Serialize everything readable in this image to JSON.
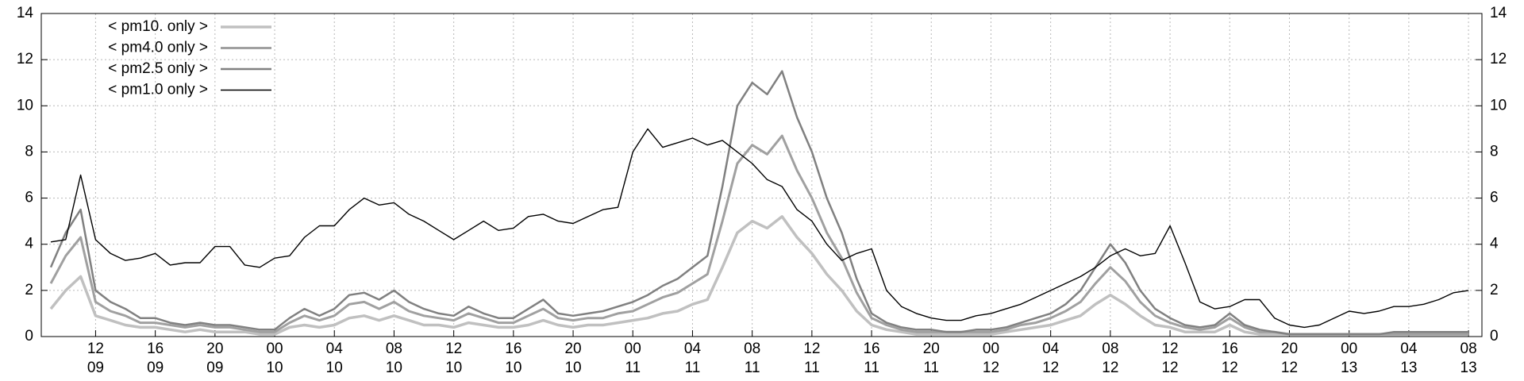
{
  "chart_data": {
    "type": "line",
    "x": [
      9,
      10,
      11,
      12,
      13,
      14,
      15,
      16,
      17,
      18,
      19,
      20,
      21,
      22,
      23,
      24,
      25,
      26,
      27,
      28,
      29,
      30,
      31,
      32,
      33,
      34,
      35,
      36,
      37,
      38,
      39,
      40,
      41,
      42,
      43,
      44,
      45,
      46,
      47,
      48,
      49,
      50,
      51,
      52,
      53,
      54,
      55,
      56,
      57,
      58,
      59,
      60,
      61,
      62,
      63,
      64,
      65,
      66,
      67,
      68,
      69,
      70,
      71,
      72,
      73,
      74,
      75,
      76,
      77,
      78,
      79,
      80,
      81,
      82,
      83,
      84,
      85,
      86,
      87,
      88,
      89,
      90,
      91,
      92,
      93,
      94,
      95,
      96,
      97,
      98,
      99,
      100,
      101,
      102,
      103,
      104
    ],
    "series": [
      {
        "name": "< pm10. only >",
        "color": "#c0c0c0",
        "width": 3.5,
        "values": [
          1.2,
          2.0,
          2.6,
          0.9,
          0.7,
          0.5,
          0.4,
          0.4,
          0.3,
          0.2,
          0.3,
          0.2,
          0.2,
          0.2,
          0.1,
          0.1,
          0.4,
          0.5,
          0.4,
          0.5,
          0.8,
          0.9,
          0.7,
          0.9,
          0.7,
          0.5,
          0.5,
          0.4,
          0.6,
          0.5,
          0.4,
          0.4,
          0.5,
          0.7,
          0.5,
          0.4,
          0.5,
          0.5,
          0.6,
          0.7,
          0.8,
          1.0,
          1.1,
          1.4,
          1.6,
          3.0,
          4.5,
          5.0,
          4.7,
          5.2,
          4.3,
          3.6,
          2.7,
          2.0,
          1.1,
          0.5,
          0.3,
          0.2,
          0.1,
          0.1,
          0.1,
          0.1,
          0.1,
          0.1,
          0.2,
          0.3,
          0.4,
          0.5,
          0.7,
          0.9,
          1.4,
          1.8,
          1.4,
          0.9,
          0.5,
          0.4,
          0.2,
          0.2,
          0.2,
          0.5,
          0.2,
          0.1,
          0.1,
          0.1,
          0.1,
          0.1,
          0.1,
          0.1,
          0.1,
          0.1,
          0.1,
          0.1,
          0.1,
          0.1,
          0.1,
          0.1
        ]
      },
      {
        "name": "< pm4.0 only >",
        "color": "#a0a0a0",
        "width": 3,
        "values": [
          2.3,
          3.5,
          4.3,
          1.5,
          1.1,
          0.9,
          0.6,
          0.6,
          0.5,
          0.4,
          0.5,
          0.4,
          0.4,
          0.3,
          0.2,
          0.2,
          0.6,
          0.9,
          0.7,
          0.9,
          1.4,
          1.5,
          1.2,
          1.5,
          1.1,
          0.9,
          0.8,
          0.7,
          1.0,
          0.8,
          0.6,
          0.6,
          0.9,
          1.2,
          0.8,
          0.7,
          0.8,
          0.8,
          1.0,
          1.1,
          1.4,
          1.7,
          1.9,
          2.3,
          2.7,
          5.0,
          7.5,
          8.3,
          7.9,
          8.7,
          7.2,
          6.0,
          4.5,
          3.4,
          1.9,
          0.8,
          0.5,
          0.3,
          0.2,
          0.2,
          0.2,
          0.2,
          0.2,
          0.2,
          0.3,
          0.5,
          0.6,
          0.8,
          1.1,
          1.5,
          2.3,
          3.0,
          2.4,
          1.5,
          0.9,
          0.6,
          0.4,
          0.3,
          0.4,
          0.8,
          0.4,
          0.2,
          0.2,
          0.1,
          0.1,
          0.1,
          0.1,
          0.1,
          0.1,
          0.1,
          0.1,
          0.1,
          0.1,
          0.1,
          0.1,
          0.1
        ]
      },
      {
        "name": "< pm2.5 only >",
        "color": "#808080",
        "width": 2.5,
        "values": [
          3.0,
          4.5,
          5.5,
          2.0,
          1.5,
          1.2,
          0.8,
          0.8,
          0.6,
          0.5,
          0.6,
          0.5,
          0.5,
          0.4,
          0.3,
          0.3,
          0.8,
          1.2,
          0.9,
          1.2,
          1.8,
          1.9,
          1.6,
          2.0,
          1.5,
          1.2,
          1.0,
          0.9,
          1.3,
          1.0,
          0.8,
          0.8,
          1.2,
          1.6,
          1.0,
          0.9,
          1.0,
          1.1,
          1.3,
          1.5,
          1.8,
          2.2,
          2.5,
          3.0,
          3.5,
          6.5,
          10.0,
          11.0,
          10.5,
          11.5,
          9.5,
          8.0,
          6.0,
          4.5,
          2.5,
          1.0,
          0.6,
          0.4,
          0.3,
          0.3,
          0.2,
          0.2,
          0.3,
          0.3,
          0.4,
          0.6,
          0.8,
          1.0,
          1.4,
          2.0,
          3.0,
          4.0,
          3.2,
          2.0,
          1.2,
          0.8,
          0.5,
          0.4,
          0.5,
          1.0,
          0.5,
          0.3,
          0.2,
          0.1,
          0.1,
          0.1,
          0.1,
          0.1,
          0.1,
          0.1,
          0.2,
          0.2,
          0.2,
          0.2,
          0.2,
          0.2
        ]
      },
      {
        "name": "< pm1.0 only >",
        "color": "#000000",
        "width": 1.4,
        "values": [
          4.1,
          4.2,
          7.0,
          4.2,
          3.6,
          3.3,
          3.4,
          3.6,
          3.1,
          3.2,
          3.2,
          3.9,
          3.9,
          3.1,
          3.0,
          3.4,
          3.5,
          4.3,
          4.8,
          4.8,
          5.5,
          6.0,
          5.7,
          5.8,
          5.3,
          5.0,
          4.6,
          4.2,
          4.6,
          5.0,
          4.6,
          4.7,
          5.2,
          5.3,
          5.0,
          4.9,
          5.2,
          5.5,
          5.6,
          8.0,
          9.0,
          8.2,
          8.4,
          8.6,
          8.3,
          8.5,
          8.0,
          7.5,
          6.8,
          6.5,
          5.5,
          5.0,
          4.0,
          3.3,
          3.6,
          3.8,
          2.0,
          1.3,
          1.0,
          0.8,
          0.7,
          0.7,
          0.9,
          1.0,
          1.2,
          1.4,
          1.7,
          2.0,
          2.3,
          2.6,
          3.0,
          3.5,
          3.8,
          3.5,
          3.6,
          4.8,
          3.2,
          1.5,
          1.2,
          1.3,
          1.6,
          1.6,
          0.8,
          0.5,
          0.4,
          0.5,
          0.8,
          1.1,
          1.0,
          1.1,
          1.3,
          1.3,
          1.4,
          1.6,
          1.9,
          2.0
        ]
      }
    ],
    "xlim": [
      8.36,
      104.9
    ],
    "xticks": [
      {
        "value": 12,
        "label": "12\n09"
      },
      {
        "value": 16,
        "label": "16\n09"
      },
      {
        "value": 20,
        "label": "20\n09"
      },
      {
        "value": 24,
        "label": "00\n10"
      },
      {
        "value": 28,
        "label": "04\n10"
      },
      {
        "value": 32,
        "label": "08\n10"
      },
      {
        "value": 36,
        "label": "12\n10"
      },
      {
        "value": 40,
        "label": "16\n10"
      },
      {
        "value": 44,
        "label": "20\n10"
      },
      {
        "value": 48,
        "label": "00\n11"
      },
      {
        "value": 52,
        "label": "04\n11"
      },
      {
        "value": 56,
        "label": "08\n11"
      },
      {
        "value": 60,
        "label": "12\n11"
      },
      {
        "value": 64,
        "label": "16\n11"
      },
      {
        "value": 68,
        "label": "20\n11"
      },
      {
        "value": 72,
        "label": "00\n12"
      },
      {
        "value": 76,
        "label": "04\n12"
      },
      {
        "value": 80,
        "label": "08\n12"
      },
      {
        "value": 84,
        "label": "12\n12"
      },
      {
        "value": 88,
        "label": "16\n12"
      },
      {
        "value": 92,
        "label": "20\n12"
      },
      {
        "value": 96,
        "label": "00\n13"
      },
      {
        "value": 100,
        "label": "04\n13"
      },
      {
        "value": 104,
        "label": "08\n13"
      }
    ],
    "ylim": [
      0,
      14
    ],
    "yticks": [
      0,
      2,
      4,
      6,
      8,
      10,
      12,
      14
    ],
    "grid": true,
    "legend": "top-left"
  }
}
